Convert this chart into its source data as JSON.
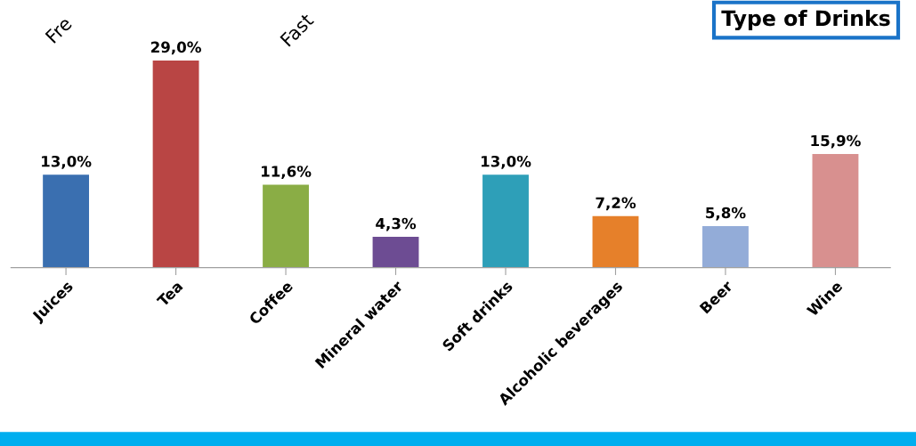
{
  "chart_data": {
    "type": "bar",
    "title": "Type of Drinks",
    "categories": [
      "Juices",
      "Tea",
      "Coffee",
      "Mineral water",
      "Soft drinks",
      "Alcoholic beverages",
      "Beer",
      "Wine"
    ],
    "values": [
      13.0,
      29.0,
      11.6,
      4.3,
      13.0,
      7.2,
      5.8,
      15.9
    ],
    "value_labels": [
      "13,0%",
      "29,0%",
      "11,6%",
      "4,3%",
      "13,0%",
      "7,2%",
      "5,8%",
      "15,9%"
    ],
    "colors": [
      "#3a6fb0",
      "#b94544",
      "#8aad45",
      "#6d4c93",
      "#2e9fb8",
      "#e6802a",
      "#93acd8",
      "#d8908f"
    ],
    "annotations": [
      "Fre",
      "Fast"
    ],
    "grid": false,
    "legend": false
  }
}
